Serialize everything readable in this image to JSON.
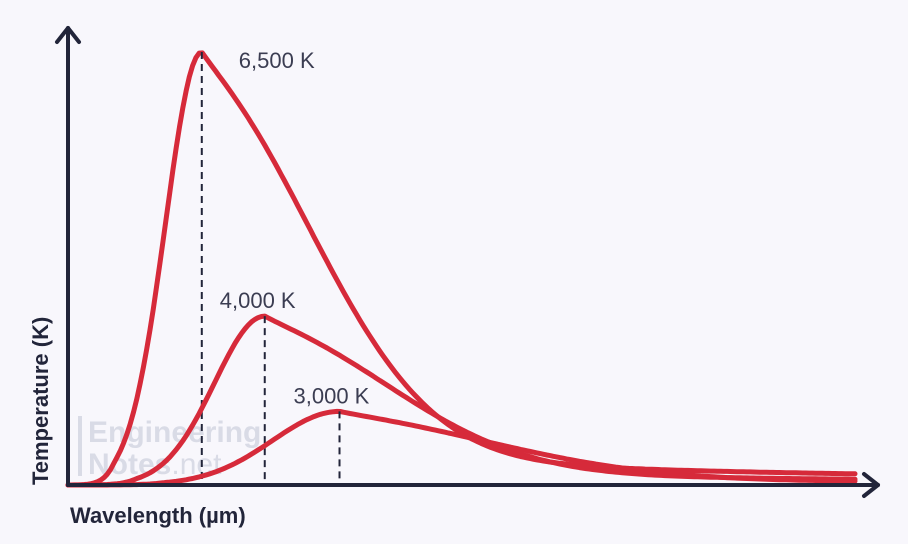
{
  "chart_data": {
    "type": "line",
    "xlabel": "Wavelength (µm)",
    "ylabel": "Temperature (K)",
    "grid": false,
    "series": [
      {
        "name": "6,500 K",
        "label": "6,500 K",
        "peak_x": 0.17,
        "peak_y": 1.0,
        "width_left": 0.065,
        "width_right": 0.21,
        "tail": 0.25,
        "color": "#d62a3a"
      },
      {
        "name": "4,000 K",
        "label": "4,000 K",
        "peak_x": 0.25,
        "peak_y": 0.39,
        "width_left": 0.09,
        "width_right": 0.24,
        "tail": 0.27,
        "color": "#d62a3a"
      },
      {
        "name": "3,000 K",
        "label": "3,000 K",
        "peak_x": 0.345,
        "peak_y": 0.17,
        "width_left": 0.12,
        "width_right": 0.29,
        "tail": 0.29,
        "color": "#d62a3a"
      }
    ]
  },
  "watermark": {
    "line1": "Engineering",
    "line2_bold": "Notes",
    "line2_light": ".net"
  }
}
